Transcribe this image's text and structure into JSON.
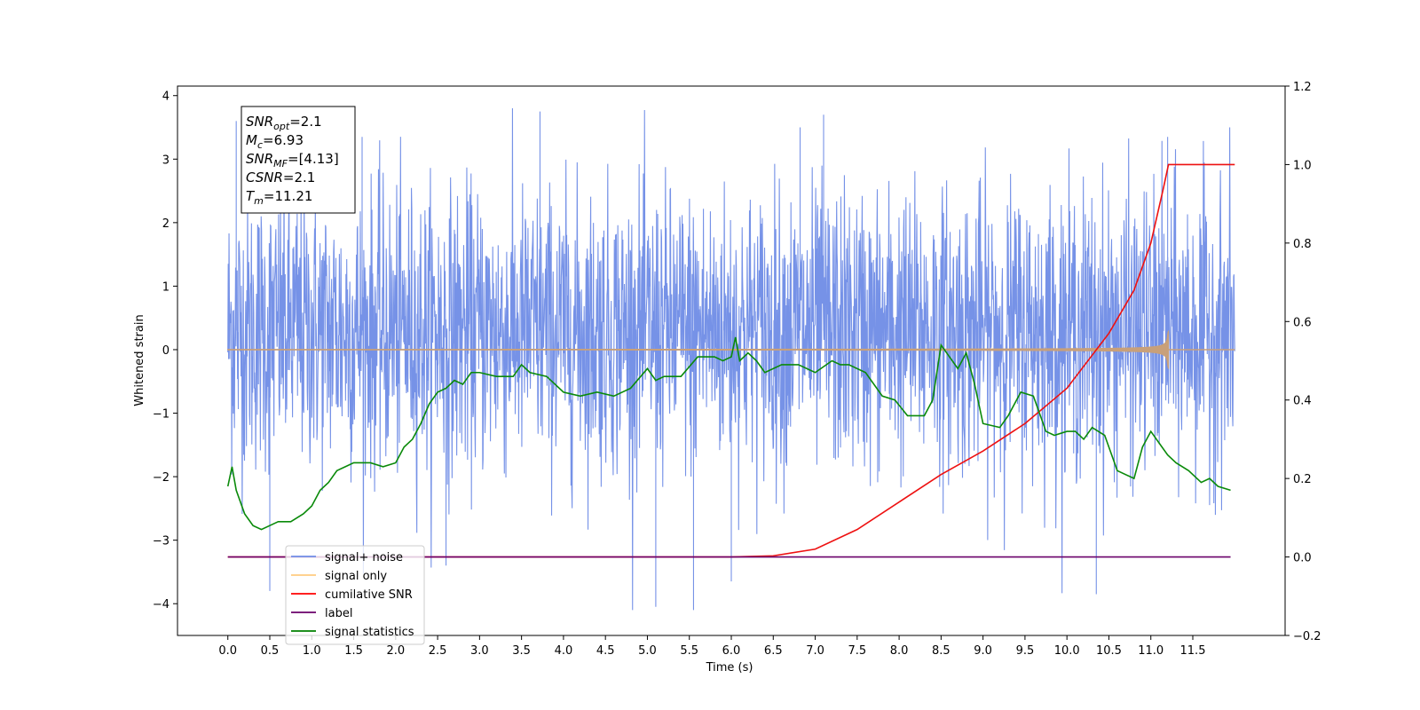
{
  "chart_data": {
    "type": "line",
    "xlabel": "Time (s)",
    "ylabel": "Whitened strain",
    "xlim": [
      -0.6,
      12.6
    ],
    "ylim_left": [
      -4.5,
      4.15
    ],
    "ylim_right": [
      -0.2,
      1.2
    ],
    "x_ticks": [
      "0.0",
      "0.5",
      "1.0",
      "1.5",
      "2.0",
      "2.5",
      "3.0",
      "3.5",
      "4.0",
      "4.5",
      "5.0",
      "5.5",
      "6.0",
      "6.5",
      "7.0",
      "7.5",
      "8.0",
      "8.5",
      "9.0",
      "9.5",
      "10.0",
      "10.5",
      "11.0",
      "11.5"
    ],
    "y_ticks_left": [
      "4",
      "3",
      "2",
      "1",
      "0",
      "−1",
      "−2",
      "−3",
      "−4"
    ],
    "y_ticks_right": [
      "1.2",
      "1.0",
      "0.8",
      "0.6",
      "0.4",
      "0.2",
      "0.0",
      "−0.2"
    ],
    "info_box": {
      "lines": [
        {
          "main": "SNR",
          "sub": "opt",
          "rest": "=2.1"
        },
        {
          "main": "M",
          "sub": "c",
          "rest": "=6.93"
        },
        {
          "main": "SNR",
          "sub": "MF",
          "rest": "=[4.13]"
        },
        {
          "main": "CSNR",
          "sub": "",
          "rest": "=2.1"
        },
        {
          "main": "T",
          "sub": "m",
          "rest": "=11.21"
        }
      ]
    },
    "legend": {
      "placement": "lower-left",
      "entries": [
        {
          "label": "signal+ noise",
          "color": "#6f8ce6"
        },
        {
          "label": "signal only",
          "color": "#ffcc80"
        },
        {
          "label": "cumilative SNR",
          "color": "#ff0000"
        },
        {
          "label": "label",
          "color": "#6a006a"
        },
        {
          "label": "signal statistics",
          "color": "#008000"
        }
      ]
    },
    "series": [
      {
        "name": "signal+ noise",
        "axis": "left",
        "color": "#6f8ce6",
        "kind": "noise",
        "x_range": [
          0,
          12
        ],
        "envelope_mean": 0.3,
        "envelope_sd": 1.1,
        "notable_peaks": [
          {
            "x": 3.72,
            "y": 3.75
          },
          {
            "x": 7.1,
            "y": 3.7
          },
          {
            "x": 6.82,
            "y": 3.5
          },
          {
            "x": 11.2,
            "y": 3.35
          },
          {
            "x": 0.1,
            "y": 3.6
          },
          {
            "x": 1.6,
            "y": 3.35
          },
          {
            "x": 5.1,
            "y": -4.05
          },
          {
            "x": 5.55,
            "y": -4.1
          },
          {
            "x": 10.35,
            "y": -3.85
          },
          {
            "x": 0.5,
            "y": -3.8
          },
          {
            "x": 2.6,
            "y": -3.4
          },
          {
            "x": 6.0,
            "y": -3.65
          }
        ]
      },
      {
        "name": "signal only",
        "axis": "left",
        "color": "#c8a07a",
        "kind": "chirp",
        "x_range": [
          0,
          12
        ],
        "merge_time": 11.21,
        "peak_amplitude": 0.3
      },
      {
        "name": "cumilative SNR",
        "axis": "right",
        "color": "#ee1111",
        "x": [
          0,
          6.0,
          6.5,
          7.0,
          7.5,
          8.0,
          8.5,
          9.0,
          9.5,
          10.0,
          10.5,
          10.8,
          11.0,
          11.15,
          11.21,
          12.0
        ],
        "y": [
          0.0,
          0.0,
          0.003,
          0.02,
          0.07,
          0.14,
          0.21,
          0.27,
          0.34,
          0.43,
          0.57,
          0.68,
          0.8,
          0.94,
          1.0,
          1.0
        ]
      },
      {
        "name": "label",
        "axis": "right",
        "color": "#6a006a",
        "x": [
          0,
          11.95
        ],
        "y": [
          0.0,
          0.0
        ]
      },
      {
        "name": "signal statistics",
        "axis": "right",
        "color": "#0a8a0a",
        "x": [
          0.0,
          0.05,
          0.1,
          0.2,
          0.3,
          0.4,
          0.5,
          0.6,
          0.75,
          0.9,
          1.0,
          1.1,
          1.2,
          1.3,
          1.4,
          1.5,
          1.7,
          1.85,
          2.0,
          2.1,
          2.2,
          2.3,
          2.4,
          2.5,
          2.6,
          2.7,
          2.8,
          2.9,
          3.0,
          3.2,
          3.4,
          3.5,
          3.6,
          3.8,
          4.0,
          4.2,
          4.4,
          4.6,
          4.8,
          5.0,
          5.1,
          5.2,
          5.4,
          5.6,
          5.8,
          5.9,
          6.0,
          6.05,
          6.1,
          6.2,
          6.3,
          6.4,
          6.6,
          6.8,
          7.0,
          7.2,
          7.3,
          7.4,
          7.6,
          7.8,
          7.95,
          8.1,
          8.3,
          8.4,
          8.5,
          8.6,
          8.7,
          8.8,
          8.9,
          9.0,
          9.2,
          9.3,
          9.45,
          9.6,
          9.75,
          9.85,
          10.0,
          10.1,
          10.2,
          10.3,
          10.45,
          10.6,
          10.8,
          10.9,
          11.0,
          11.1,
          11.2,
          11.3,
          11.45,
          11.6,
          11.7,
          11.8,
          11.95
        ],
        "y": [
          0.18,
          0.23,
          0.17,
          0.11,
          0.08,
          0.07,
          0.08,
          0.09,
          0.09,
          0.11,
          0.13,
          0.17,
          0.19,
          0.22,
          0.23,
          0.24,
          0.24,
          0.23,
          0.24,
          0.28,
          0.3,
          0.34,
          0.39,
          0.42,
          0.43,
          0.45,
          0.44,
          0.47,
          0.47,
          0.46,
          0.46,
          0.49,
          0.47,
          0.46,
          0.42,
          0.41,
          0.42,
          0.41,
          0.43,
          0.48,
          0.45,
          0.46,
          0.46,
          0.51,
          0.51,
          0.5,
          0.51,
          0.56,
          0.5,
          0.52,
          0.5,
          0.47,
          0.49,
          0.49,
          0.47,
          0.5,
          0.49,
          0.49,
          0.47,
          0.41,
          0.4,
          0.36,
          0.36,
          0.4,
          0.54,
          0.51,
          0.48,
          0.52,
          0.44,
          0.34,
          0.33,
          0.36,
          0.42,
          0.41,
          0.32,
          0.31,
          0.32,
          0.32,
          0.3,
          0.33,
          0.31,
          0.22,
          0.2,
          0.28,
          0.32,
          0.29,
          0.26,
          0.24,
          0.22,
          0.19,
          0.2,
          0.18,
          0.17
        ]
      }
    ]
  }
}
